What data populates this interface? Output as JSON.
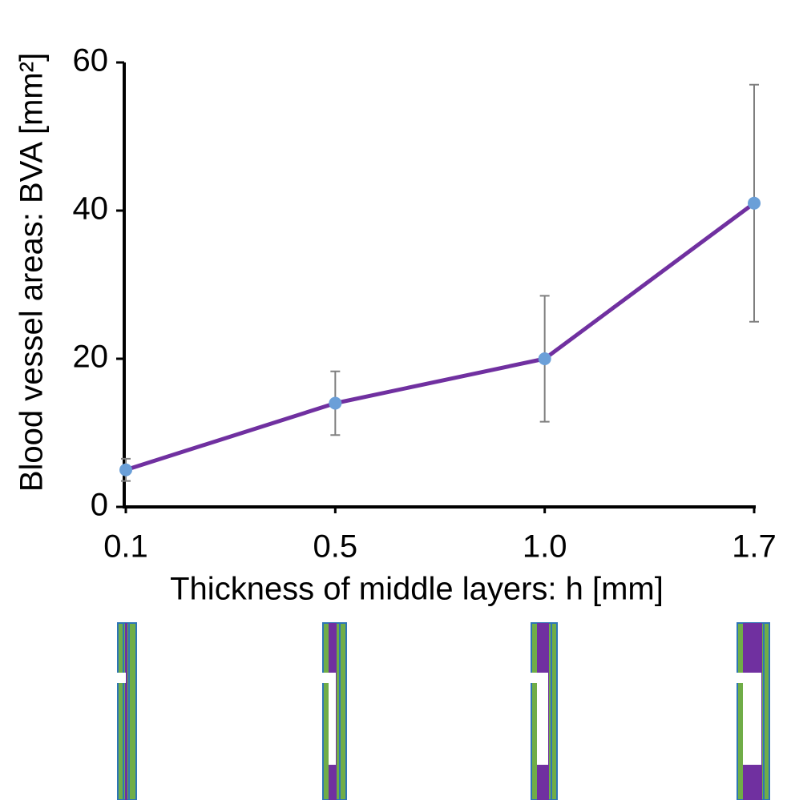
{
  "chart_data": {
    "type": "line",
    "x_label": "Thickness of middle layers: h [mm]",
    "y_label": "Blood vessel areas: BVA [mm²]",
    "categories": [
      "0.1",
      "0.5",
      "1.0",
      "1.7"
    ],
    "series": [
      {
        "color": "#7030a0",
        "marker_color": "#6a9fd8",
        "error_color": "#7f7f7f",
        "values": [
          5,
          14,
          20,
          41
        ],
        "errors": [
          1.5,
          4.3,
          8.5,
          16
        ]
      }
    ],
    "ylim": [
      0,
      60
    ],
    "yticks": [
      0,
      20,
      40,
      60
    ],
    "grid": false
  }
}
